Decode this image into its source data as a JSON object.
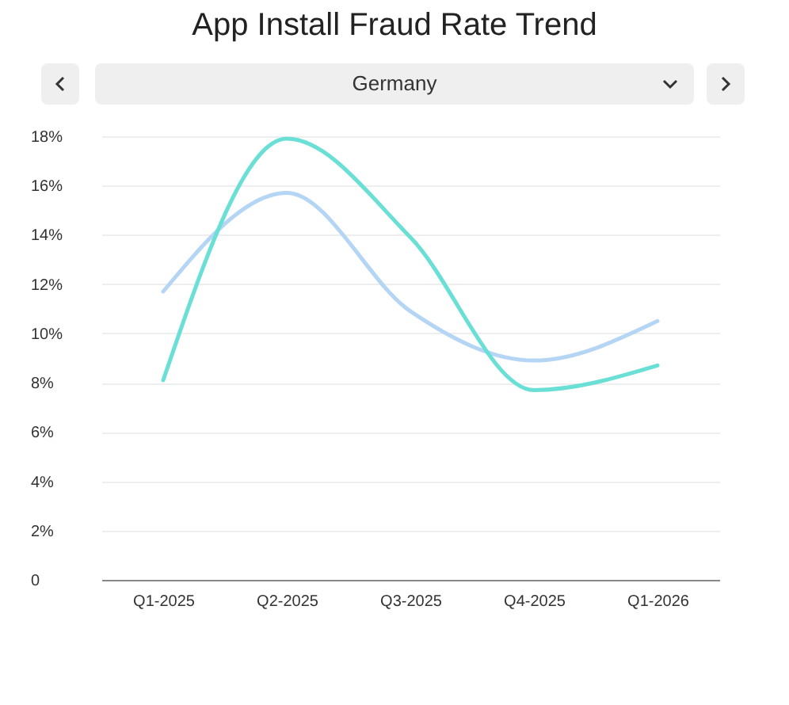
{
  "chart_data": {
    "type": "line",
    "title": "App Install Fraud Rate Trend",
    "subtitle": "Germany",
    "categories": [
      "Q1-2025",
      "Q2-2025",
      "Q3-2025",
      "Q4-2025",
      "Q1-2026"
    ],
    "series": [
      {
        "color": "#b5d5f5",
        "values": [
          11.7,
          15.7,
          10.9,
          8.9,
          10.5
        ]
      },
      {
        "color": "#6adfd6",
        "values": [
          8.1,
          17.9,
          13.9,
          7.7,
          8.7
        ]
      }
    ],
    "ylim": [
      0,
      18
    ],
    "yticks": [
      {
        "value": 0,
        "label": "0"
      },
      {
        "value": 2,
        "label": "2%"
      },
      {
        "value": 4,
        "label": "4%"
      },
      {
        "value": 6,
        "label": "6%"
      },
      {
        "value": 8,
        "label": "8%"
      },
      {
        "value": 10,
        "label": "10%"
      },
      {
        "value": 12,
        "label": "12%"
      },
      {
        "value": 14,
        "label": "14%"
      },
      {
        "value": 16,
        "label": "16%"
      },
      {
        "value": 18,
        "label": "18%"
      }
    ],
    "grid": "y",
    "legend": false,
    "marker": "none",
    "line_style": "solid"
  }
}
